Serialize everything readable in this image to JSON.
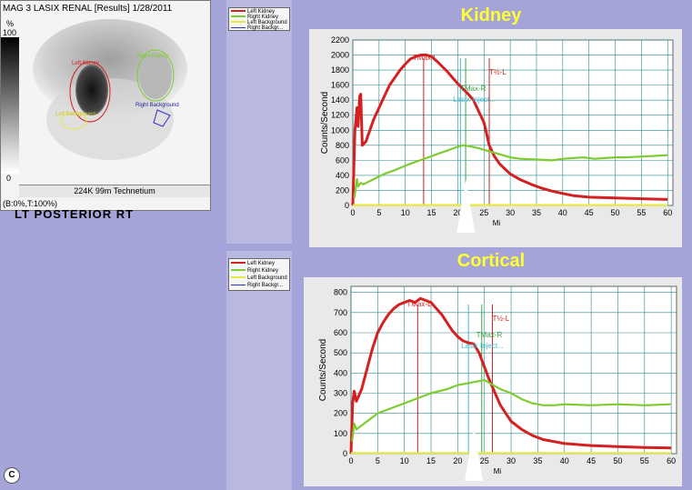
{
  "scan": {
    "title": "MAG 3 LASIX RENAL [Results] 1/28/2011",
    "pct_label": "%",
    "pct_max": "100",
    "pct_min": "0",
    "roi_left_kidney": "Left Kidney",
    "roi_right_kidney": "Right Kidney",
    "roi_left_background": "Left Background",
    "roi_right_background": "Right Background",
    "footer": "224K 99m Technetium",
    "status": "(B:0%,T:100%)",
    "view_label": "LT  POSTERIOR  RT"
  },
  "legend": {
    "items": [
      {
        "label": "Left Kidney",
        "color": "#d42020"
      },
      {
        "label": "Right Kidney",
        "color": "#7ccc30"
      },
      {
        "label": "Left Background",
        "color": "#e8e840"
      },
      {
        "label": "Right Backgr...",
        "color": "#3030c0"
      }
    ],
    "items2": [
      {
        "label": "Left Kidney",
        "color": "#d42020"
      },
      {
        "label": "Right Kidney",
        "color": "#7ccc30"
      },
      {
        "label": "Left Background",
        "color": "#e8e840"
      },
      {
        "label": "Right Backgr...",
        "color": "#3030c0"
      }
    ]
  },
  "figure_letter": "C",
  "chart_data": [
    {
      "type": "line",
      "title": "Kidney",
      "ylabel": "Counts/Second",
      "xlabel": "Mi",
      "xlim": [
        0,
        61
      ],
      "ylim": [
        0,
        2200
      ],
      "xticks": [
        0,
        5,
        10,
        15,
        20,
        25,
        30,
        35,
        40,
        45,
        50,
        55,
        60
      ],
      "yticks": [
        0,
        200,
        400,
        600,
        800,
        1000,
        1200,
        1400,
        1600,
        1800,
        2000,
        2200
      ],
      "series": [
        {
          "name": "Left Kidney",
          "color": "#d42020",
          "points": [
            [
              0,
              0
            ],
            [
              0.4,
              1000
            ],
            [
              0.8,
              1300
            ],
            [
              1,
              1050
            ],
            [
              1.3,
              1450
            ],
            [
              1.5,
              1480
            ],
            [
              1.8,
              800
            ],
            [
              2.5,
              850
            ],
            [
              3,
              950
            ],
            [
              4,
              1150
            ],
            [
              5,
              1300
            ],
            [
              6,
              1450
            ],
            [
              7,
              1600
            ],
            [
              8,
              1700
            ],
            [
              9,
              1800
            ],
            [
              10,
              1880
            ],
            [
              11,
              1950
            ],
            [
              12,
              1980
            ],
            [
              13,
              2000
            ],
            [
              14,
              2000
            ],
            [
              15,
              1980
            ],
            [
              16,
              1920
            ],
            [
              17,
              1850
            ],
            [
              18,
              1780
            ],
            [
              19,
              1700
            ],
            [
              20,
              1620
            ],
            [
              21,
              1550
            ],
            [
              22,
              1480
            ],
            [
              23,
              1400
            ],
            [
              24,
              1250
            ],
            [
              25,
              1100
            ],
            [
              26,
              800
            ],
            [
              27,
              650
            ],
            [
              28,
              550
            ],
            [
              30,
              420
            ],
            [
              32,
              340
            ],
            [
              34,
              280
            ],
            [
              36,
              230
            ],
            [
              38,
              190
            ],
            [
              40,
              160
            ],
            [
              42,
              130
            ],
            [
              45,
              110
            ],
            [
              50,
              100
            ],
            [
              55,
              90
            ],
            [
              60,
              80
            ]
          ]
        },
        {
          "name": "Right Kidney",
          "color": "#7ccc30",
          "points": [
            [
              0.3,
              100
            ],
            [
              0.8,
              350
            ],
            [
              1,
              250
            ],
            [
              1.5,
              300
            ],
            [
              2,
              280
            ],
            [
              4,
              350
            ],
            [
              6,
              420
            ],
            [
              8,
              470
            ],
            [
              10,
              530
            ],
            [
              12,
              580
            ],
            [
              14,
              630
            ],
            [
              16,
              680
            ],
            [
              18,
              730
            ],
            [
              20,
              780
            ],
            [
              21,
              800
            ],
            [
              22,
              790
            ],
            [
              24,
              760
            ],
            [
              26,
              720
            ],
            [
              28,
              680
            ],
            [
              30,
              640
            ],
            [
              32,
              620
            ],
            [
              35,
              610
            ],
            [
              38,
              600
            ],
            [
              40,
              620
            ],
            [
              42,
              630
            ],
            [
              44,
              640
            ],
            [
              46,
              620
            ],
            [
              48,
              630
            ],
            [
              50,
              640
            ],
            [
              52,
              640
            ],
            [
              55,
              650
            ],
            [
              58,
              660
            ],
            [
              60,
              670
            ]
          ]
        },
        {
          "name": "Left Background",
          "color": "#e8e840",
          "points": [
            [
              0,
              5
            ],
            [
              60,
              5
            ]
          ]
        }
      ],
      "markers": [
        {
          "label": "TMax-L",
          "x": 13.5,
          "color": "#d42020"
        },
        {
          "label": "T½-L",
          "x": 26,
          "color": "#d42020"
        },
        {
          "label": "TMax-R",
          "x": 21.5,
          "color": "#3aa040"
        },
        {
          "label": "Lasix Inject...",
          "x": 20.5,
          "color": "#40b8d0"
        }
      ]
    },
    {
      "type": "line",
      "title": "Cortical",
      "ylabel": "Counts/Second",
      "xlabel": "Mi",
      "xlim": [
        0,
        61
      ],
      "ylim": [
        0,
        830
      ],
      "xticks": [
        0,
        5,
        10,
        15,
        20,
        25,
        30,
        35,
        40,
        45,
        50,
        55,
        60
      ],
      "yticks": [
        0,
        100,
        200,
        300,
        400,
        500,
        600,
        700,
        800
      ],
      "series": [
        {
          "name": "Left Kidney",
          "color": "#d42020",
          "points": [
            [
              0,
              0
            ],
            [
              0.3,
              250
            ],
            [
              0.6,
              310
            ],
            [
              1,
              260
            ],
            [
              2,
              320
            ],
            [
              3,
              420
            ],
            [
              4,
              520
            ],
            [
              5,
              600
            ],
            [
              6,
              650
            ],
            [
              7,
              690
            ],
            [
              8,
              720
            ],
            [
              9,
              740
            ],
            [
              10,
              750
            ],
            [
              11,
              760
            ],
            [
              12,
              750
            ],
            [
              13,
              770
            ],
            [
              14,
              760
            ],
            [
              15,
              750
            ],
            [
              16,
              720
            ],
            [
              17,
              690
            ],
            [
              18,
              650
            ],
            [
              19,
              610
            ],
            [
              20,
              580
            ],
            [
              21,
              560
            ],
            [
              22,
              550
            ],
            [
              23,
              545
            ],
            [
              24,
              500
            ],
            [
              25,
              430
            ],
            [
              26,
              360
            ],
            [
              27,
              300
            ],
            [
              28,
              240
            ],
            [
              30,
              160
            ],
            [
              32,
              120
            ],
            [
              34,
              90
            ],
            [
              36,
              70
            ],
            [
              38,
              60
            ],
            [
              40,
              50
            ],
            [
              45,
              40
            ],
            [
              50,
              35
            ],
            [
              55,
              30
            ],
            [
              60,
              28
            ]
          ]
        },
        {
          "name": "Right Kidney",
          "color": "#7ccc30",
          "points": [
            [
              0.2,
              60
            ],
            [
              0.6,
              150
            ],
            [
              1,
              120
            ],
            [
              2,
              140
            ],
            [
              3,
              160
            ],
            [
              5,
              200
            ],
            [
              8,
              230
            ],
            [
              10,
              250
            ],
            [
              12,
              270
            ],
            [
              15,
              300
            ],
            [
              18,
              320
            ],
            [
              20,
              340
            ],
            [
              22,
              350
            ],
            [
              24,
              360
            ],
            [
              25,
              365
            ],
            [
              26,
              350
            ],
            [
              28,
              320
            ],
            [
              30,
              300
            ],
            [
              32,
              270
            ],
            [
              34,
              250
            ],
            [
              36,
              240
            ],
            [
              38,
              240
            ],
            [
              40,
              245
            ],
            [
              45,
              240
            ],
            [
              50,
              245
            ],
            [
              55,
              240
            ],
            [
              60,
              245
            ]
          ]
        },
        {
          "name": "Left Background",
          "color": "#e8e840",
          "points": [
            [
              0,
              3
            ],
            [
              60,
              3
            ]
          ]
        }
      ],
      "markers": [
        {
          "label": "TMax-L",
          "x": 12.5,
          "color": "#d42020"
        },
        {
          "label": "T½-L",
          "x": 26.5,
          "color": "#d42020"
        },
        {
          "label": "TMax-R",
          "x": 24.5,
          "color": "#3aa040"
        },
        {
          "label": "Lasix Inject...",
          "x": 22,
          "color": "#40b8d0"
        }
      ]
    }
  ]
}
